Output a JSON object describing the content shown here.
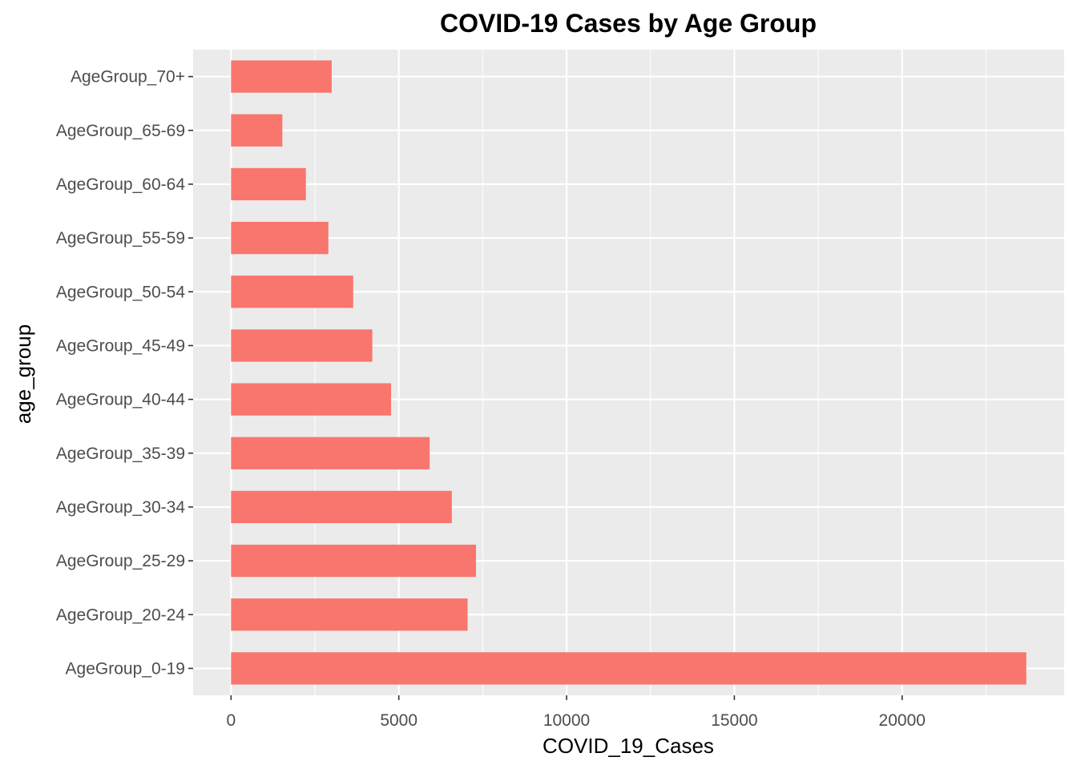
{
  "chart_data": {
    "type": "bar",
    "orientation": "horizontal",
    "title": "COVID-19 Cases by Age Group",
    "xlabel": "COVID_19_Cases",
    "ylabel": "age_group",
    "categories": [
      "AgeGroup_0-19",
      "AgeGroup_20-24",
      "AgeGroup_25-29",
      "AgeGroup_30-34",
      "AgeGroup_35-39",
      "AgeGroup_40-44",
      "AgeGroup_45-49",
      "AgeGroup_50-54",
      "AgeGroup_55-59",
      "AgeGroup_60-64",
      "AgeGroup_65-69",
      "AgeGroup_70+"
    ],
    "values": [
      23700,
      7050,
      7300,
      6580,
      5920,
      4770,
      4210,
      3640,
      2900,
      2230,
      1530,
      3000
    ],
    "x_ticks": [
      0,
      5000,
      10000,
      15000,
      20000
    ],
    "xlim": [
      -1130,
      24830
    ],
    "bar_color": "#F8766D",
    "panel_color": "#EBEBEB",
    "grid": true,
    "legend": "none"
  }
}
